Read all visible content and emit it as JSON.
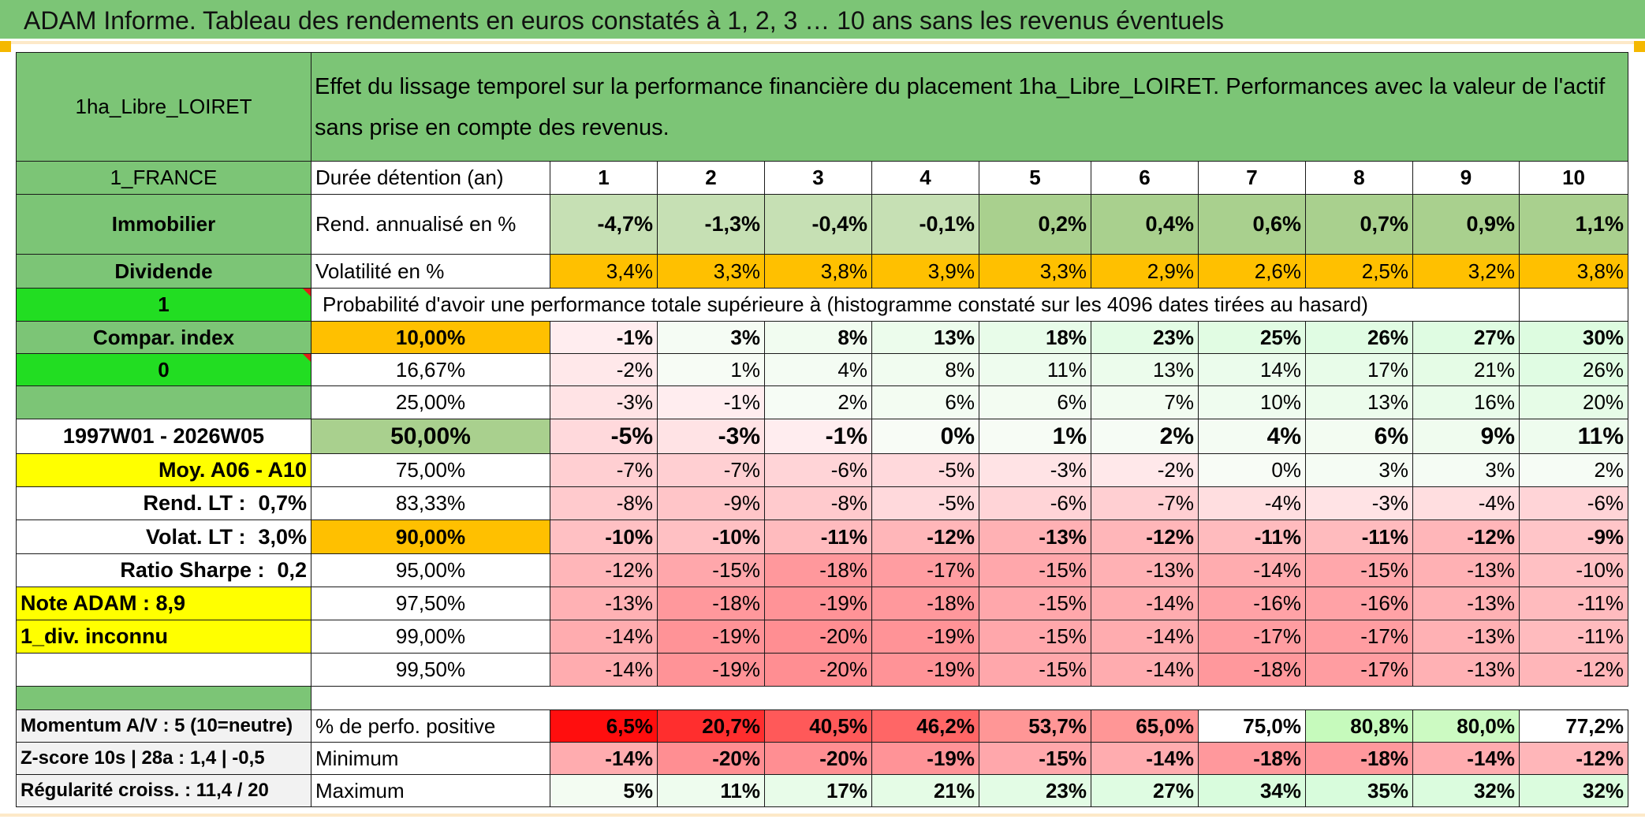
{
  "title": "ADAM Informe. Tableau des rendements en euros constatés à 1, 2, 3 … 10 ans sans les revenus éventuels",
  "left": {
    "name": "1ha_Libre_LOIRET",
    "country": "1_FRANCE",
    "asset_class": "Immobilier",
    "income_type": "Dividende",
    "flag1": "1",
    "compar_index": "Compar. index",
    "flag2": "0",
    "period": "1997W01 - 2026W05",
    "moy": "Moy. A06 - A10",
    "rend_lt_label": "Rend. LT :",
    "rend_lt_value": "0,7%",
    "volat_lt_label": "Volat. LT :",
    "volat_lt_value": "3,0%",
    "sharpe_label": "Ratio Sharpe :",
    "sharpe_value": "0,2",
    "note": "Note ADAM : 8,9",
    "div": "1_div. inconnu",
    "momentum": "Momentum A/V : 5 (10=neutre)",
    "zscore": "Z-score 10s | 28a : 1,4 | -0,5",
    "regularite": "Régularité croiss. : 11,4 / 20"
  },
  "description": "Effet du lissage temporel sur la performance financière du placement 1ha_Libre_LOIRET. Performances avec la valeur de l'actif sans prise en compte des revenus.",
  "labels": {
    "duree": "Durée détention (an)",
    "rend": "Rend. annualisé en %",
    "volat": "Volatilité en %",
    "proba": "Probabilité d'avoir une performance totale supérieure à (histogramme constaté sur les 4096 dates tirées au hasard)",
    "positive": "% de perfo. positive",
    "minimum": "Minimum",
    "maximum": "Maximum"
  },
  "years": [
    "1",
    "2",
    "3",
    "4",
    "5",
    "6",
    "7",
    "8",
    "9",
    "10"
  ],
  "rend": [
    "-4,7%",
    "-1,3%",
    "-0,4%",
    "-0,1%",
    "0,2%",
    "0,4%",
    "0,6%",
    "0,7%",
    "0,9%",
    "1,1%"
  ],
  "volat": [
    "3,4%",
    "3,3%",
    "3,8%",
    "3,9%",
    "3,3%",
    "2,9%",
    "2,6%",
    "2,5%",
    "3,2%",
    "3,8%"
  ],
  "percentiles": [
    {
      "p": "10,00%",
      "v": [
        "-1%",
        "3%",
        "8%",
        "13%",
        "18%",
        "23%",
        "25%",
        "26%",
        "27%",
        "30%"
      ]
    },
    {
      "p": "16,67%",
      "v": [
        "-2%",
        "1%",
        "4%",
        "8%",
        "11%",
        "13%",
        "14%",
        "17%",
        "21%",
        "26%"
      ]
    },
    {
      "p": "25,00%",
      "v": [
        "-3%",
        "-1%",
        "2%",
        "6%",
        "6%",
        "7%",
        "10%",
        "13%",
        "16%",
        "20%"
      ]
    },
    {
      "p": "50,00%",
      "v": [
        "-5%",
        "-3%",
        "-1%",
        "0%",
        "1%",
        "2%",
        "4%",
        "6%",
        "9%",
        "11%"
      ]
    },
    {
      "p": "75,00%",
      "v": [
        "-7%",
        "-7%",
        "-6%",
        "-5%",
        "-3%",
        "-2%",
        "0%",
        "3%",
        "3%",
        "2%"
      ]
    },
    {
      "p": "83,33%",
      "v": [
        "-8%",
        "-9%",
        "-8%",
        "-5%",
        "-6%",
        "-7%",
        "-4%",
        "-3%",
        "-4%",
        "-6%"
      ]
    },
    {
      "p": "90,00%",
      "v": [
        "-10%",
        "-10%",
        "-11%",
        "-12%",
        "-13%",
        "-12%",
        "-11%",
        "-11%",
        "-12%",
        "-9%"
      ]
    },
    {
      "p": "95,00%",
      "v": [
        "-12%",
        "-15%",
        "-18%",
        "-17%",
        "-15%",
        "-13%",
        "-14%",
        "-15%",
        "-13%",
        "-10%"
      ]
    },
    {
      "p": "97,50%",
      "v": [
        "-13%",
        "-18%",
        "-19%",
        "-18%",
        "-15%",
        "-14%",
        "-16%",
        "-16%",
        "-13%",
        "-11%"
      ]
    },
    {
      "p": "99,00%",
      "v": [
        "-14%",
        "-19%",
        "-20%",
        "-19%",
        "-15%",
        "-14%",
        "-17%",
        "-17%",
        "-13%",
        "-11%"
      ]
    },
    {
      "p": "99,50%",
      "v": [
        "-14%",
        "-19%",
        "-20%",
        "-19%",
        "-15%",
        "-14%",
        "-18%",
        "-17%",
        "-13%",
        "-12%"
      ]
    }
  ],
  "positive": [
    "6,5%",
    "20,7%",
    "40,5%",
    "46,2%",
    "53,7%",
    "65,0%",
    "75,0%",
    "80,8%",
    "80,0%",
    "77,2%"
  ],
  "minimum": [
    "-14%",
    "-20%",
    "-20%",
    "-19%",
    "-15%",
    "-14%",
    "-18%",
    "-18%",
    "-14%",
    "-12%"
  ],
  "maximum": [
    "5%",
    "11%",
    "17%",
    "21%",
    "23%",
    "27%",
    "34%",
    "35%",
    "32%",
    "32%"
  ],
  "colors": {
    "banner_green": "#7cc576",
    "bright_green": "#22dd22",
    "orange": "#ffc000",
    "yellow": "#ffff00",
    "red_text": "#e0201a",
    "rend_green": "#c6e0b4"
  }
}
